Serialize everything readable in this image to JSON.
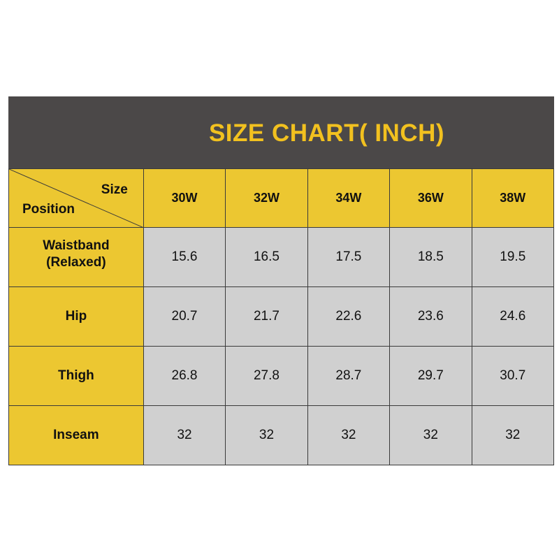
{
  "title": "SIZE CHART( INCH)",
  "corner": {
    "size_label": "Size",
    "position_label": "Position"
  },
  "sizes": [
    "30W",
    "32W",
    "34W",
    "36W",
    "38W"
  ],
  "rows": [
    {
      "label_line1": "Waistband",
      "label_line2": "(Relaxed)",
      "values": [
        "15.6",
        "16.5",
        "17.5",
        "18.5",
        "19.5"
      ]
    },
    {
      "label_line1": "Hip",
      "label_line2": "",
      "values": [
        "20.7",
        "21.7",
        "22.6",
        "23.6",
        "24.6"
      ]
    },
    {
      "label_line1": "Thigh",
      "label_line2": "",
      "values": [
        "26.8",
        "27.8",
        "28.7",
        "29.7",
        "30.7"
      ]
    },
    {
      "label_line1": "Inseam",
      "label_line2": "",
      "values": [
        "32",
        "32",
        "32",
        "32",
        "32"
      ]
    }
  ],
  "colors": {
    "title_bg": "#4b4848",
    "title_text": "#f2c11f",
    "header_bg": "#ecc731",
    "cell_bg": "#d0d0d0"
  }
}
